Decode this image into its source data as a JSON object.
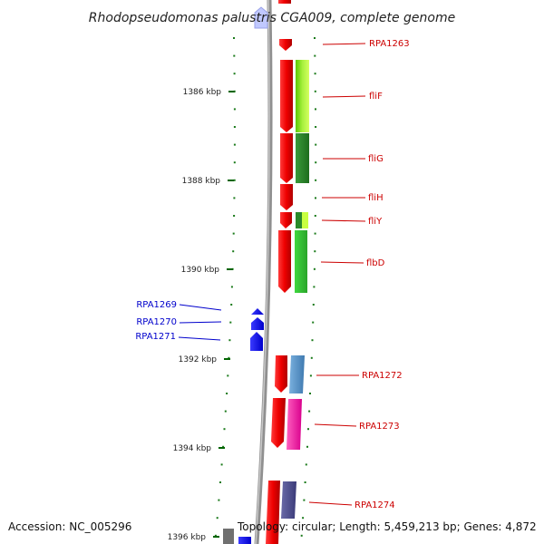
{
  "title": "Rhodopseudomonas palustris CGA009, complete genome",
  "footer": {
    "accession": "Accession: NC_005296",
    "topology": "Topology: circular; Length: 5,459,213 bp; Genes: 4,872"
  },
  "ticks": [
    "1386 kbp",
    "1388 kbp",
    "1390 kbp",
    "1392 kbp",
    "1394 kbp",
    "1396 kbp"
  ],
  "genes": [
    {
      "label": "RPA1263",
      "color": "#cc0000"
    },
    {
      "label": "fliF",
      "color": "#cc0000"
    },
    {
      "label": "fliG",
      "color": "#cc0000"
    },
    {
      "label": "fliH",
      "color": "#cc0000"
    },
    {
      "label": "fliY",
      "color": "#cc0000"
    },
    {
      "label": "flbD",
      "color": "#cc0000"
    },
    {
      "label": "RPA1269",
      "color": "#0000cc"
    },
    {
      "label": "RPA1270",
      "color": "#0000cc"
    },
    {
      "label": "RPA1271",
      "color": "#0000cc"
    },
    {
      "label": "RPA1272",
      "color": "#cc0000"
    },
    {
      "label": "RPA1273",
      "color": "#cc0000"
    },
    {
      "label": "RPA1274",
      "color": "#cc0000"
    }
  ]
}
